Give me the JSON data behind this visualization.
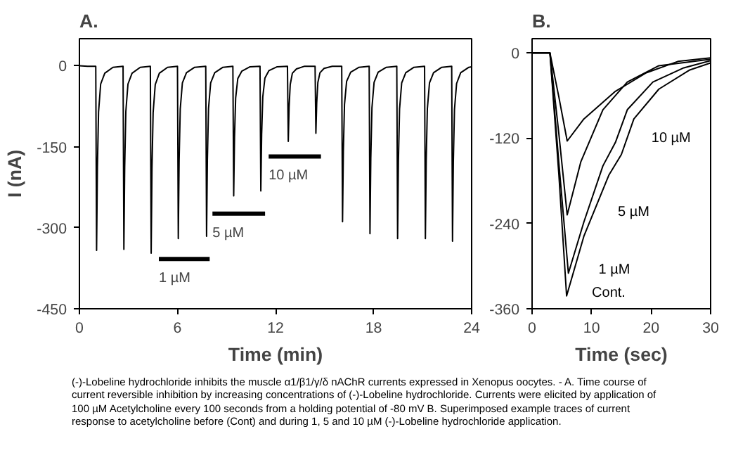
{
  "chart_data": [
    {
      "type": "line",
      "title": "A.",
      "xlabel": "Time (min)",
      "ylabel": "I (nA)",
      "xlim": [
        0,
        24
      ],
      "ylim": [
        -450,
        50
      ],
      "xticks": [
        0,
        6,
        12,
        18,
        24
      ],
      "yticks": [
        0,
        -150,
        -300,
        -450
      ],
      "grid": false,
      "series": [
        {
          "color": "#000000",
          "x": [
            0,
            0.5,
            1.0,
            1.05,
            1.1,
            1.17,
            1.3,
            1.55,
            2.05,
            2.67,
            2.72,
            2.77,
            2.84,
            2.97,
            3.22,
            3.72,
            4.34,
            4.39,
            4.44,
            4.51,
            4.64,
            4.89,
            5.39,
            6.0,
            6.05,
            6.1,
            6.17,
            6.3,
            6.55,
            7.05,
            7.73,
            7.78,
            7.83,
            7.9,
            8.03,
            8.28,
            8.78,
            9.39,
            9.44,
            9.49,
            9.56,
            9.69,
            9.94,
            10.44,
            11.05,
            11.1,
            11.15,
            11.22,
            11.35,
            11.6,
            12.1,
            12.73,
            12.78,
            12.83,
            12.9,
            13.03,
            13.28,
            13.78,
            14.42,
            14.47,
            14.52,
            14.59,
            14.72,
            14.97,
            15.47,
            16.05,
            16.1,
            16.15,
            16.22,
            16.35,
            16.6,
            17.1,
            17.73,
            17.78,
            17.83,
            17.9,
            18.03,
            18.28,
            18.78,
            19.42,
            19.47,
            19.52,
            19.59,
            19.72,
            19.97,
            20.47,
            21.12,
            21.17,
            21.22,
            21.29,
            21.42,
            21.67,
            22.17,
            22.78,
            22.83,
            22.88,
            22.95,
            23.08,
            23.33,
            23.83,
            24
          ],
          "values": [
            0,
            -1,
            -1,
            -342,
            -188,
            -86,
            -34,
            -14,
            -3,
            -1,
            -340,
            -187,
            -85,
            -34,
            -14,
            -3,
            -1,
            -347,
            -191,
            -87,
            -35,
            -14,
            -3,
            -1,
            -320,
            -176,
            -80,
            -32,
            -13,
            -3,
            -1,
            -316,
            -174,
            -79,
            -32,
            -13,
            -3,
            -1,
            -241,
            -133,
            -60,
            -24,
            -10,
            -2,
            -1,
            -232,
            -128,
            -58,
            -23,
            -9,
            -2,
            -1,
            -140,
            -77,
            -35,
            -14,
            -6,
            -1,
            -1,
            -125,
            -69,
            -31,
            -13,
            -5,
            -1,
            -1,
            -289,
            -159,
            -72,
            -29,
            -12,
            -3,
            -1,
            -311,
            -171,
            -78,
            -31,
            -12,
            -3,
            -1,
            -320,
            -176,
            -80,
            -32,
            -13,
            -3,
            -1,
            -320,
            -176,
            -80,
            -32,
            -13,
            -3,
            -1,
            -325,
            -179,
            -81,
            -33,
            -13,
            -3,
            -2
          ]
        },
        {
          "color": "#000000",
          "x": [
            4.86,
            7.97
          ],
          "values": [
            -358,
            -358
          ]
        },
        {
          "color": "#000000",
          "x": [
            8.14,
            11.36
          ],
          "values": [
            -274,
            -274
          ]
        },
        {
          "color": "#000000",
          "x": [
            11.58,
            14.78
          ],
          "values": [
            -168,
            -168
          ]
        }
      ],
      "annotations": [
        {
          "text": "1 µM",
          "x": 4.86,
          "y": -358
        },
        {
          "text": "5 µM",
          "x": 8.14,
          "y": -274
        },
        {
          "text": "10 µM",
          "x": 11.58,
          "y": -168
        },
        "(-)-Lobeline hydrochloride inhibits the muscle α1/β1/γ/δ nAChR currents expressed in Xenopus oocytes. - A. Time course of current reversible inhibition by increasing concentrations of (-)-Lobeline hydrochloride. Currents were elicited by application of 100 µM Acetylcholine every 100 seconds from a holding potential of -80 mV B. Superimposed example traces of current response to acetylcholine before (Cont) and during 1, 5 and 10 µM (-)-Lobeline hydrochloride application."
      ]
    },
    {
      "type": "line",
      "title": "B.",
      "xlabel": "Time (sec)",
      "xlim": [
        0,
        30
      ],
      "ylim": [
        -360,
        20
      ],
      "xticks": [
        0,
        10,
        20,
        30
      ],
      "yticks": [
        0,
        -120,
        -240,
        -360
      ],
      "grid": false,
      "series": [
        {
          "color": "#000000",
          "x": [
            0,
            3,
            4.5,
            5.9,
            8.7,
            14,
            19.2,
            24.5,
            30
          ],
          "values": [
            0,
            0,
            -62,
            -124,
            -93,
            -54,
            -28,
            -12,
            -7
          ]
        },
        {
          "color": "#000000",
          "x": [
            0,
            3,
            4.5,
            5.9,
            8.2,
            11.9,
            16,
            21.3,
            30
          ],
          "values": [
            0,
            0,
            -114,
            -228,
            -153,
            -80,
            -41,
            -18,
            -9
          ]
        },
        {
          "color": "#000000",
          "x": [
            0,
            3,
            4.5,
            6.1,
            8.7,
            11.9,
            14,
            16,
            20.3,
            25.5,
            30
          ],
          "values": [
            0,
            0,
            -155,
            -310,
            -238,
            -159,
            -126,
            -80,
            -41,
            -21,
            -11
          ]
        },
        {
          "color": "#000000",
          "x": [
            0,
            3,
            4.5,
            5.8,
            8.7,
            12.9,
            15,
            17.1,
            21.3,
            26.5,
            30
          ],
          "values": [
            0,
            0,
            -171,
            -342,
            -258,
            -172,
            -143,
            -93,
            -51,
            -24,
            -14
          ]
        }
      ],
      "annotations": [
        "10 µM",
        "5 µM",
        "1 µM",
        "Cont."
      ]
    }
  ]
}
